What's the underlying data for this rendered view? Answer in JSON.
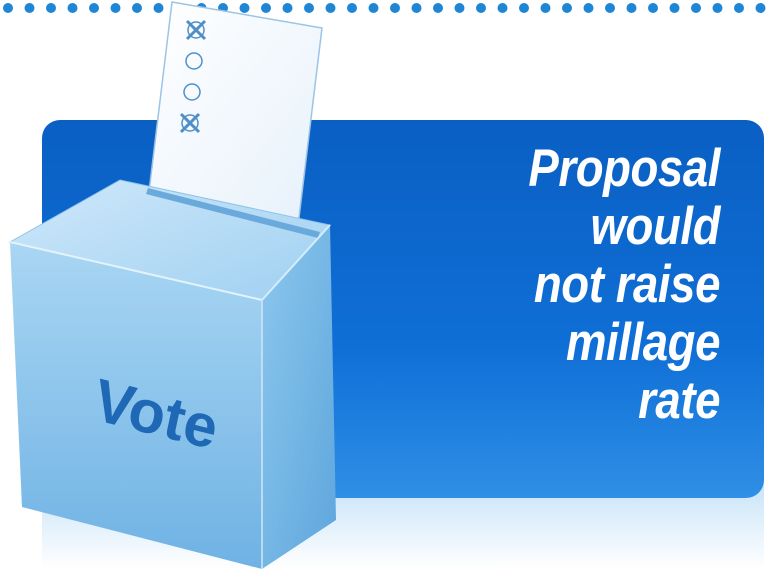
{
  "headline": {
    "lines": [
      "Proposal",
      "would",
      "not raise",
      "millage",
      "rate"
    ]
  },
  "ballot_box": {
    "label": "Vote"
  },
  "ballot": {
    "marks": [
      "x",
      "o",
      "o",
      "x"
    ]
  },
  "colors": {
    "panel": "#0a63c9",
    "panel_light": "#0f72d8",
    "glow": "#c9e4f8",
    "box_front": "#8dc6ec",
    "box_label": "#1e68b5",
    "dots": "#1f86d6",
    "ballot_mark": "#4f8fc8"
  }
}
